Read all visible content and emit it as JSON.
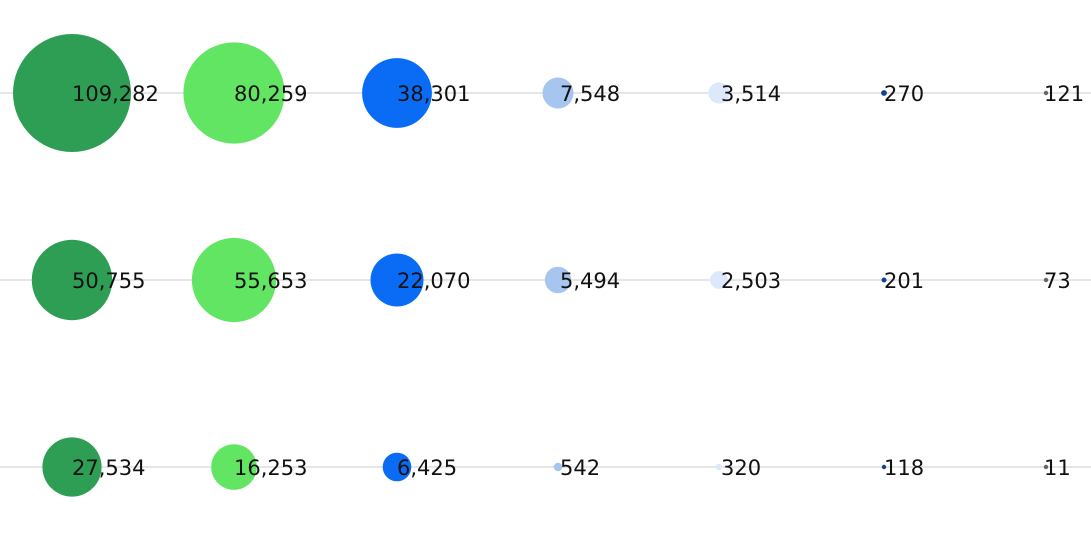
{
  "chart_data": {
    "type": "scatter",
    "title": "",
    "xlabel": "",
    "ylabel": "",
    "grid": false,
    "legend": "none",
    "size_encodes": "value",
    "columns": [
      {
        "color": "#2e9e55"
      },
      {
        "color": "#62e562"
      },
      {
        "color": "#0a6cf5"
      },
      {
        "color": "#a6c6f0"
      },
      {
        "color": "#dde8fa"
      },
      {
        "color": "#14408f"
      },
      {
        "color": "#666666"
      }
    ],
    "rows": [
      {
        "values": [
          109282,
          80259,
          38301,
          7548,
          3514,
          270,
          121
        ],
        "labels": [
          "109,282",
          "80,259",
          "38,301",
          "7,548",
          "3,514",
          "270",
          "121"
        ]
      },
      {
        "values": [
          50755,
          55653,
          22070,
          5494,
          2503,
          201,
          73
        ],
        "labels": [
          "50,755",
          "55,653",
          "22,070",
          "5,494",
          "2,503",
          "201",
          "73"
        ]
      },
      {
        "values": [
          27534,
          16253,
          6425,
          542,
          320,
          118,
          11
        ],
        "labels": [
          "27,534",
          "16,253",
          "6,425",
          "542",
          "320",
          "118",
          "11"
        ]
      }
    ]
  }
}
